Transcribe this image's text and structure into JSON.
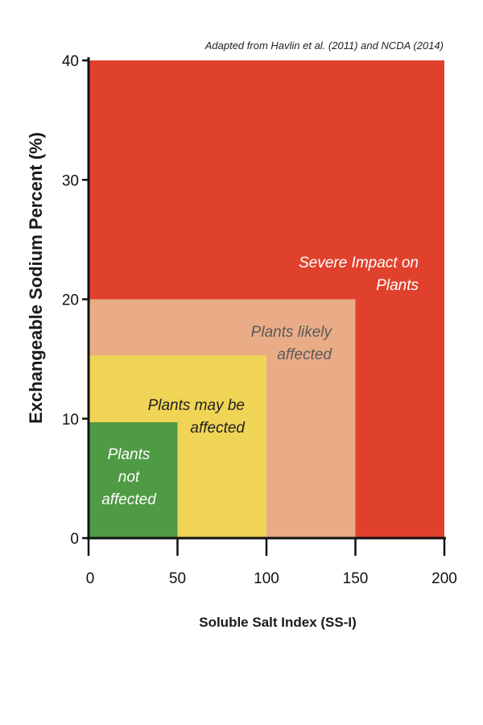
{
  "chart_data": {
    "type": "area",
    "title": "",
    "source_note": "Adapted from Havlin et al. (2011) and NCDA (2014)",
    "xlabel": "Soluble Salt Index (SS-I)",
    "ylabel": "Exchangeable Sodium Percent (%)",
    "xlim": [
      0,
      200
    ],
    "ylim": [
      0,
      40
    ],
    "x_ticks": [
      0,
      50,
      100,
      150,
      200
    ],
    "y_ticks": [
      0,
      10,
      20,
      30,
      40
    ],
    "grid": false,
    "zones": [
      {
        "label_lines": [
          "Severe Impact on",
          "Plants"
        ],
        "x_max": 200,
        "y_max": 40,
        "color": "#e0412d",
        "text_color": "#ffffff"
      },
      {
        "label_lines": [
          "Plants likely",
          "affected"
        ],
        "x_max": 150,
        "y_max": 20,
        "color": "#e9ac87",
        "text_color": "#5a5a5a"
      },
      {
        "label_lines": [
          "Plants may be",
          "affected"
        ],
        "x_max": 100,
        "y_max": 15.3,
        "color": "#f0d455",
        "text_color": "#222222"
      },
      {
        "label_lines": [
          "Plants",
          "not",
          "affected"
        ],
        "x_max": 50,
        "y_max": 9.7,
        "color": "#4e9a45",
        "text_color": "#ffffff"
      }
    ]
  }
}
